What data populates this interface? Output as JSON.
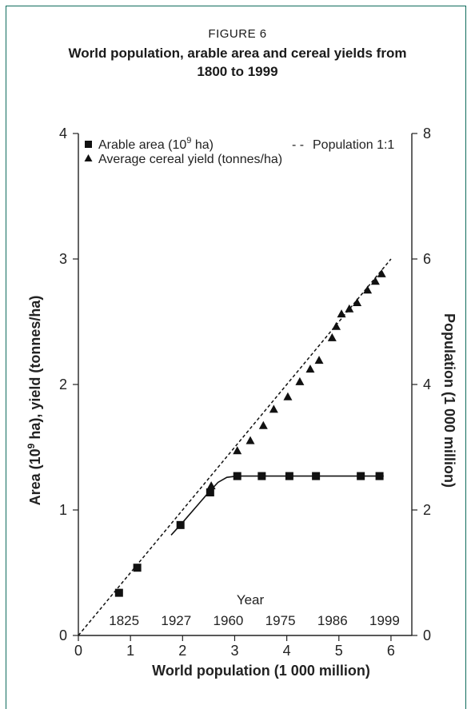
{
  "figure": {
    "label": "FIGURE 6",
    "title": "World population, arable area and cereal yields from 1800 to 1999"
  },
  "chart_data": {
    "type": "scatter",
    "title": "World population, arable area and cereal yields from 1800 to 1999",
    "xlabel": "World population (1 000 million)",
    "ylabel": "Area (10^9 ha), yield (tonnes/ha)",
    "ylabel_parts": {
      "before": "Area (10",
      "sup": "9",
      "after": " ha), yield (tonnes/ha)"
    },
    "y2label": "Population (1 000 million)",
    "xlim": [
      0,
      6.4
    ],
    "ylim": [
      0,
      4
    ],
    "y2lim": [
      0,
      8
    ],
    "xticks": [
      0,
      1,
      2,
      3,
      4,
      5,
      6
    ],
    "yticks": [
      0,
      1,
      2,
      3,
      4
    ],
    "y2ticks": [
      0,
      2,
      4,
      6,
      8
    ],
    "grid": false,
    "legend_position": "top",
    "legend": {
      "arable": {
        "before": "Arable area (10",
        "sup": "9",
        "after": " ha)"
      },
      "yield": "Average cereal yield (tonnes/ha)",
      "population": "Population 1:1",
      "population_marker": "- -"
    },
    "year_axis": {
      "title": "Year",
      "labels": [
        {
          "year": "1825",
          "x": 1.0
        },
        {
          "year": "1927",
          "x": 2.0
        },
        {
          "year": "1960",
          "x": 3.0
        },
        {
          "year": "1975",
          "x": 4.0
        },
        {
          "year": "1986",
          "x": 5.0
        },
        {
          "year": "1999",
          "x": 6.0
        }
      ]
    },
    "series": [
      {
        "name": "Arable area (10^9 ha)",
        "marker": "square",
        "points": [
          {
            "x": 0.78,
            "y": 0.34
          },
          {
            "x": 1.13,
            "y": 0.54
          },
          {
            "x": 1.96,
            "y": 0.88
          },
          {
            "x": 2.53,
            "y": 1.14
          },
          {
            "x": 3.05,
            "y": 1.27
          },
          {
            "x": 3.52,
            "y": 1.27
          },
          {
            "x": 4.05,
            "y": 1.27
          },
          {
            "x": 4.56,
            "y": 1.27
          },
          {
            "x": 5.42,
            "y": 1.27
          },
          {
            "x": 5.78,
            "y": 1.27
          }
        ],
        "fit_curve": [
          {
            "x": 1.78,
            "y": 0.8
          },
          {
            "x": 2.0,
            "y": 0.9
          },
          {
            "x": 2.25,
            "y": 1.02
          },
          {
            "x": 2.5,
            "y": 1.14
          },
          {
            "x": 2.68,
            "y": 1.22
          },
          {
            "x": 2.85,
            "y": 1.26
          },
          {
            "x": 3.05,
            "y": 1.27
          },
          {
            "x": 5.86,
            "y": 1.27
          }
        ]
      },
      {
        "name": "Average cereal yield (tonnes/ha)",
        "marker": "triangle",
        "points": [
          {
            "x": 2.55,
            "y": 1.19
          },
          {
            "x": 3.05,
            "y": 1.47
          },
          {
            "x": 3.3,
            "y": 1.55
          },
          {
            "x": 3.55,
            "y": 1.67
          },
          {
            "x": 3.75,
            "y": 1.8
          },
          {
            "x": 4.02,
            "y": 1.9
          },
          {
            "x": 4.25,
            "y": 2.02
          },
          {
            "x": 4.45,
            "y": 2.12
          },
          {
            "x": 4.62,
            "y": 2.19
          },
          {
            "x": 4.87,
            "y": 2.37
          },
          {
            "x": 4.95,
            "y": 2.46
          },
          {
            "x": 5.05,
            "y": 2.56
          },
          {
            "x": 5.2,
            "y": 2.6
          },
          {
            "x": 5.35,
            "y": 2.65
          },
          {
            "x": 5.55,
            "y": 2.75
          },
          {
            "x": 5.7,
            "y": 2.82
          },
          {
            "x": 5.82,
            "y": 2.88
          }
        ]
      },
      {
        "name": "Population 1:1",
        "style": "dashed",
        "points": [
          {
            "x": 0,
            "y": 0
          },
          {
            "x": 6.0,
            "y": 3.0
          }
        ]
      }
    ]
  }
}
